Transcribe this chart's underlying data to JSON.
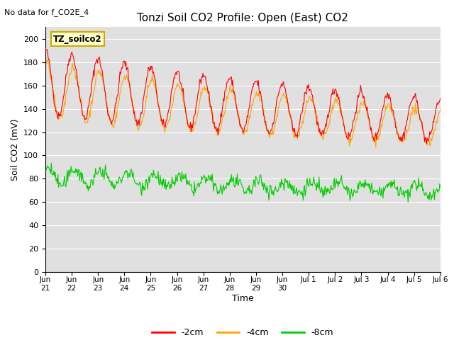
{
  "title": "Tonzi Soil CO2 Profile: Open (East) CO2",
  "subtitle": "No data for f_CO2E_4",
  "ylabel": "Soil CO2 (mV)",
  "xlabel": "Time",
  "legend_label": "TZ_soilco2",
  "ylim": [
    0,
    210
  ],
  "yticks": [
    0,
    20,
    40,
    60,
    80,
    100,
    120,
    140,
    160,
    180,
    200
  ],
  "bg_color": "#e0e0e0",
  "line_colors": {
    "2cm": "#ff0000",
    "4cm": "#ffa500",
    "8cm": "#00cc00"
  },
  "legend_items": [
    {
      "label": "-2cm",
      "color": "#ff0000"
    },
    {
      "label": "-4cm",
      "color": "#ffa500"
    },
    {
      "label": "-8cm",
      "color": "#00cc00"
    }
  ],
  "x_tick_labels": [
    "Jun\n21",
    "Jun\n22",
    "Jun\n23",
    "Jun\n24",
    "Jun\n25",
    "Jun\n26",
    "Jun\n27",
    "Jun\n28",
    "Jun\n29",
    "Jun\n30",
    "Jul 1",
    "Jul 2",
    "Jul 3",
    "Jul 4",
    "Jul 5",
    "Jul 6"
  ],
  "n_points": 600
}
